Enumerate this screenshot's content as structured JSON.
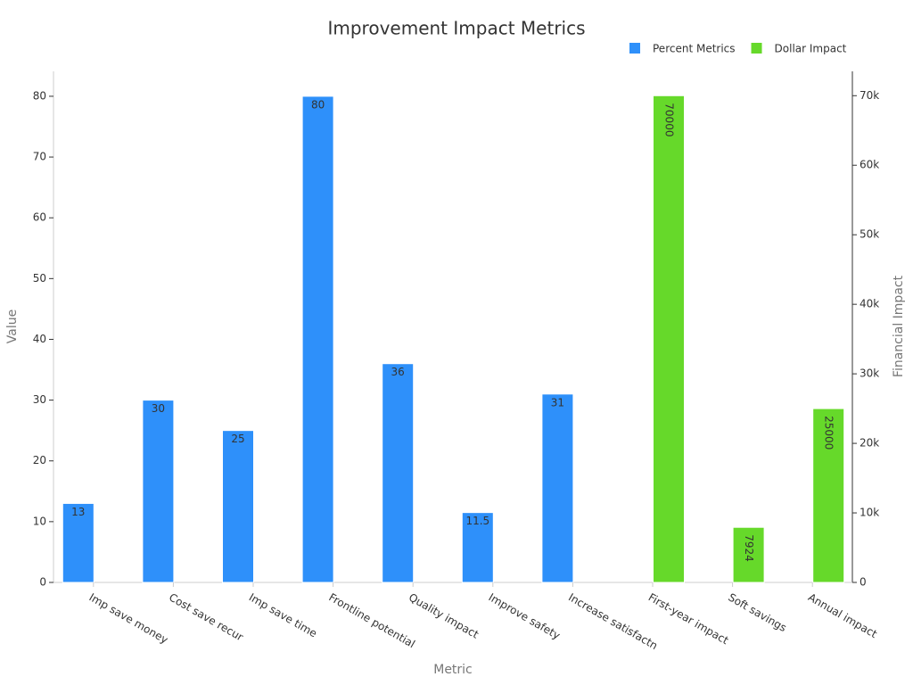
{
  "chart_data": {
    "type": "bar",
    "title": "Improvement Impact Metrics",
    "x_label": "Metric",
    "y_label": "Value",
    "y2_label": "Financial Impact",
    "categories": [
      "Imp save money",
      "Cost save recur",
      "Imp save time",
      "Frontline potential",
      "Quality impact",
      "Improve safety",
      "Increase satisfactn",
      "First-year impact",
      "Soft savings",
      "Annual impact"
    ],
    "series": [
      {
        "name": "Percent Metrics",
        "color": "#2e90fa",
        "values": [
          13,
          30,
          25,
          80,
          36,
          11.5,
          31,
          null,
          null,
          null
        ]
      },
      {
        "name": "Dollar Impact",
        "color": "#66d92a",
        "axis": "y2",
        "values": [
          null,
          null,
          null,
          null,
          null,
          null,
          null,
          70000,
          7924,
          25000
        ]
      }
    ],
    "ylim": [
      0,
      84.1
    ],
    "yticks": [
      0,
      10,
      20,
      30,
      40,
      50,
      60,
      70,
      80
    ],
    "y2lim": [
      0,
      73500
    ],
    "y2ticks": [
      0,
      {
        "value": 10000,
        "label": "10k"
      },
      {
        "value": 20000,
        "label": "20k"
      },
      {
        "value": 30000,
        "label": "30k"
      },
      {
        "value": 40000,
        "label": "40k"
      },
      {
        "value": 50000,
        "label": "50k"
      },
      {
        "value": 60000,
        "label": "60k"
      },
      {
        "value": 70000,
        "label": "70k"
      }
    ],
    "legend": "top-right"
  }
}
